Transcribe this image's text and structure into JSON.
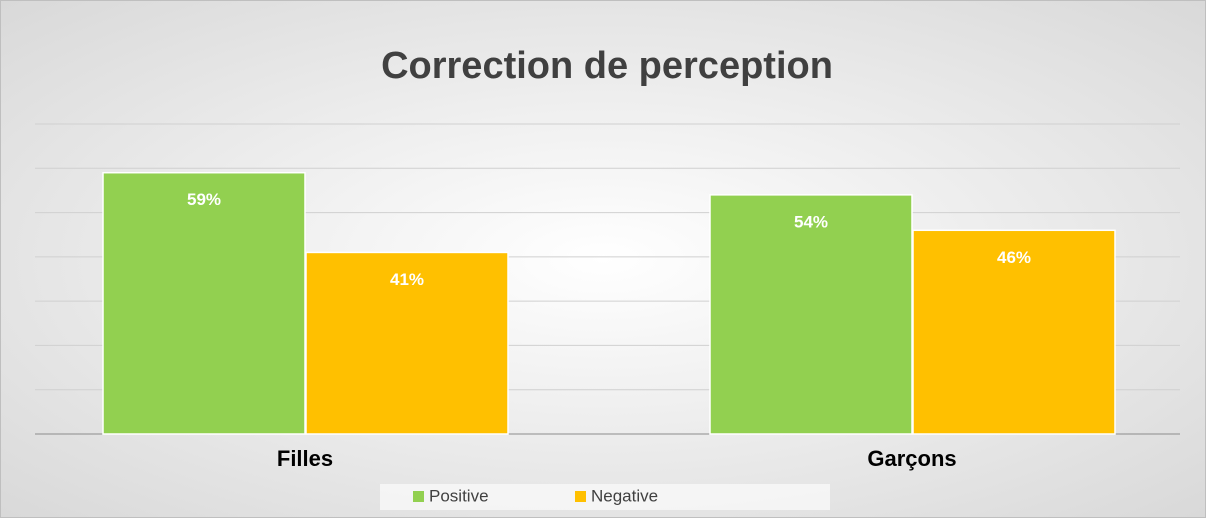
{
  "chart_data": {
    "type": "bar",
    "title": "Correction de perception",
    "categories": [
      "Filles",
      "Garçons"
    ],
    "series": [
      {
        "name": "Positive",
        "color": "#92d050",
        "values": [
          59,
          54
        ],
        "value_labels": [
          "59%",
          "54%"
        ]
      },
      {
        "name": "Negative",
        "color": "#ffc000",
        "values": [
          41,
          46
        ],
        "value_labels": [
          "41%",
          "46%"
        ]
      }
    ],
    "ylim": [
      0,
      70
    ],
    "yticks": [
      0,
      10,
      20,
      30,
      40,
      50,
      60,
      70
    ],
    "grid": true,
    "legend": "bottom"
  }
}
